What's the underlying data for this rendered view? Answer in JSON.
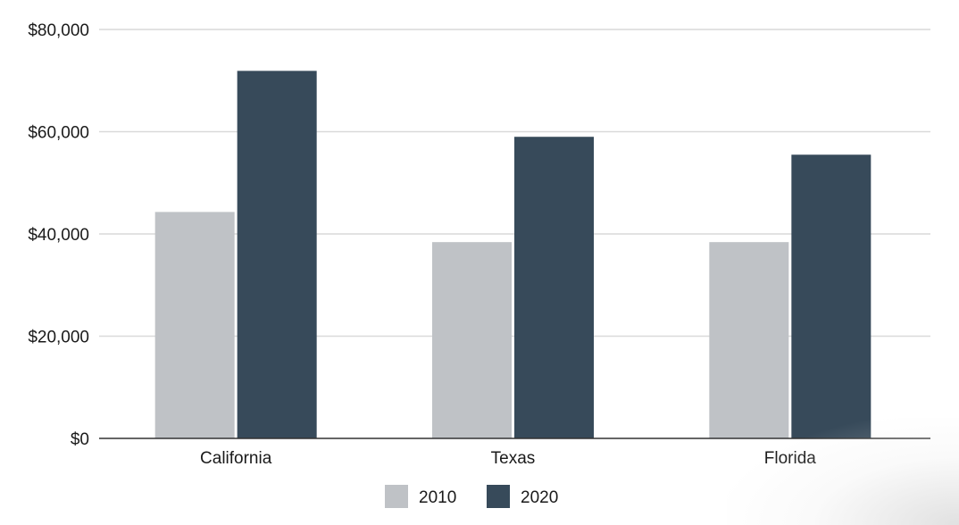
{
  "chart_data": {
    "type": "bar",
    "categories": [
      "California",
      "Texas",
      "Florida"
    ],
    "series": [
      {
        "name": "2010",
        "values": [
          44300,
          38400,
          38400
        ],
        "color": "#bfc2c6"
      },
      {
        "name": "2020",
        "values": [
          71900,
          59000,
          55500
        ],
        "color": "#374a5a"
      }
    ],
    "y_ticks": [
      "$0",
      "$20,000",
      "$40,000",
      "$60,000",
      "$80,000"
    ],
    "ylim": [
      0,
      80000
    ],
    "title": "",
    "xlabel": "",
    "ylabel": "",
    "grid": true,
    "legend_position": "bottom",
    "colors": {
      "gridline": "#d9d9d9",
      "axis": "#333333",
      "text": "#1a1a1a"
    }
  }
}
